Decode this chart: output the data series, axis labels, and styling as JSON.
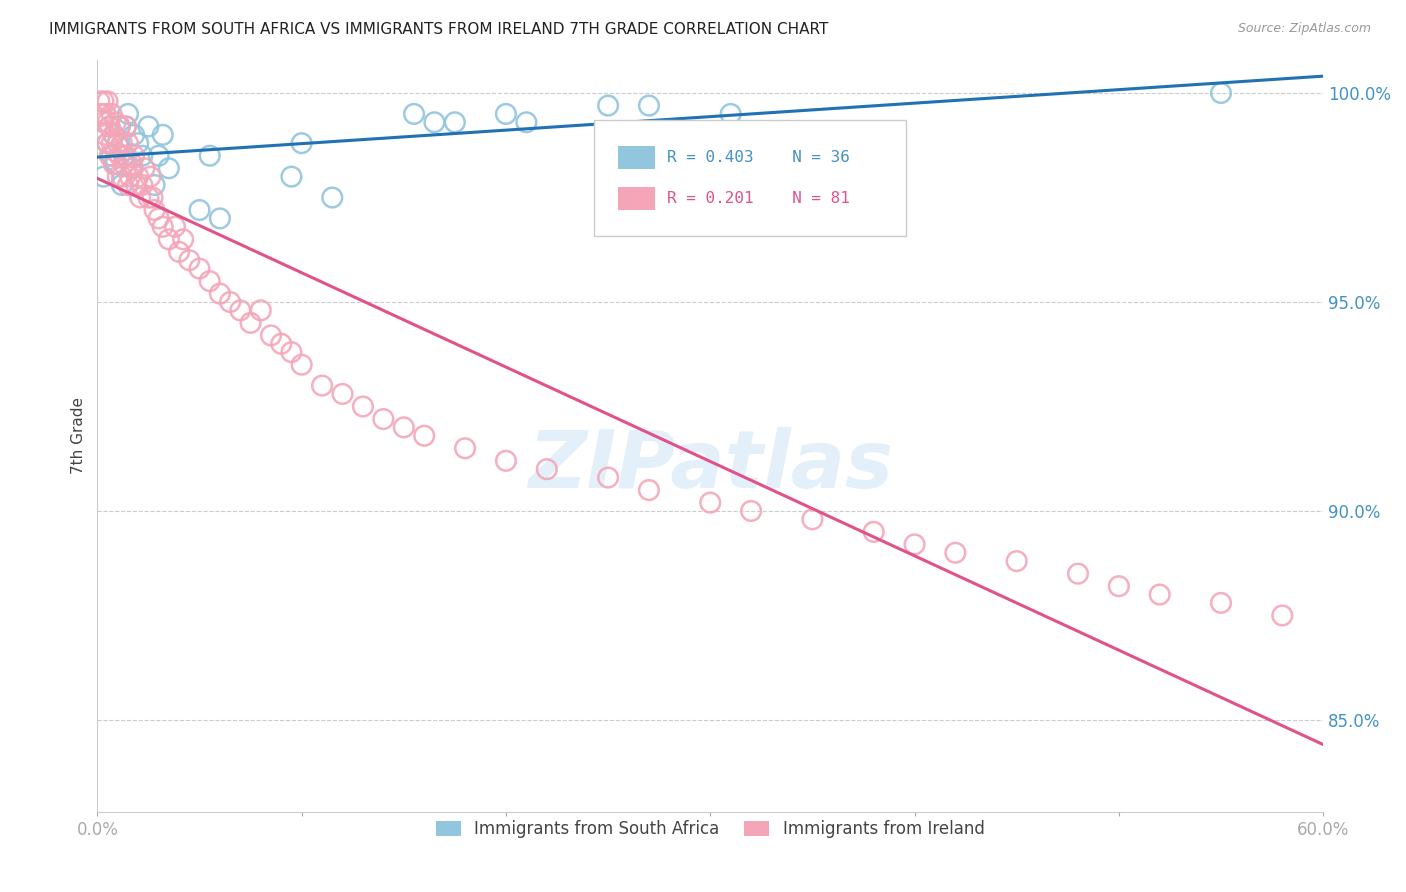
{
  "title": "IMMIGRANTS FROM SOUTH AFRICA VS IMMIGRANTS FROM IRELAND 7TH GRADE CORRELATION CHART",
  "source": "Source: ZipAtlas.com",
  "ylabel": "7th Grade",
  "xlim": [
    0.0,
    0.6
  ],
  "ylim": [
    0.828,
    1.008
  ],
  "yticks": [
    0.85,
    0.9,
    0.95,
    1.0
  ],
  "ytick_labels": [
    "85.0%",
    "90.0%",
    "95.0%",
    "100.0%"
  ],
  "color_blue": "#92c5de",
  "color_pink": "#f4a6b8",
  "color_blue_line": "#2171b5",
  "color_pink_line": "#e2528a",
  "color_grid": "#cccccc",
  "color_title": "#222222",
  "color_source": "#999999",
  "blue_scatter_x": [
    0.003,
    0.005,
    0.006,
    0.007,
    0.008,
    0.009,
    0.01,
    0.011,
    0.012,
    0.013,
    0.014,
    0.015,
    0.017,
    0.018,
    0.02,
    0.022,
    0.025,
    0.028,
    0.03,
    0.032,
    0.035,
    0.05,
    0.055,
    0.06,
    0.095,
    0.1,
    0.115,
    0.155,
    0.165,
    0.175,
    0.2,
    0.21,
    0.25,
    0.27,
    0.31,
    0.55
  ],
  "blue_scatter_y": [
    0.98,
    0.988,
    0.992,
    0.985,
    0.99,
    0.983,
    0.988,
    0.992,
    0.978,
    0.985,
    0.992,
    0.995,
    0.982,
    0.99,
    0.988,
    0.985,
    0.992,
    0.978,
    0.985,
    0.99,
    0.982,
    0.972,
    0.985,
    0.97,
    0.98,
    0.988,
    0.975,
    0.995,
    0.993,
    0.993,
    0.995,
    0.993,
    0.997,
    0.997,
    0.995,
    1.0
  ],
  "pink_scatter_x": [
    0.001,
    0.002,
    0.003,
    0.003,
    0.004,
    0.004,
    0.005,
    0.005,
    0.005,
    0.006,
    0.006,
    0.007,
    0.007,
    0.008,
    0.008,
    0.009,
    0.009,
    0.01,
    0.01,
    0.011,
    0.011,
    0.012,
    0.012,
    0.013,
    0.014,
    0.014,
    0.015,
    0.015,
    0.016,
    0.017,
    0.018,
    0.019,
    0.02,
    0.021,
    0.022,
    0.023,
    0.025,
    0.026,
    0.027,
    0.028,
    0.03,
    0.032,
    0.035,
    0.038,
    0.04,
    0.042,
    0.045,
    0.05,
    0.055,
    0.06,
    0.065,
    0.07,
    0.075,
    0.08,
    0.085,
    0.09,
    0.095,
    0.1,
    0.11,
    0.12,
    0.13,
    0.14,
    0.15,
    0.16,
    0.18,
    0.2,
    0.22,
    0.25,
    0.27,
    0.3,
    0.32,
    0.35,
    0.38,
    0.4,
    0.42,
    0.45,
    0.48,
    0.5,
    0.52,
    0.55,
    0.58
  ],
  "pink_scatter_y": [
    0.998,
    0.995,
    0.993,
    0.998,
    0.99,
    0.995,
    0.988,
    0.993,
    0.998,
    0.985,
    0.992,
    0.988,
    0.995,
    0.983,
    0.99,
    0.986,
    0.993,
    0.98,
    0.988,
    0.985,
    0.992,
    0.98,
    0.988,
    0.983,
    0.985,
    0.992,
    0.978,
    0.988,
    0.98,
    0.983,
    0.985,
    0.978,
    0.98,
    0.975,
    0.978,
    0.982,
    0.975,
    0.98,
    0.975,
    0.972,
    0.97,
    0.968,
    0.965,
    0.968,
    0.962,
    0.965,
    0.96,
    0.958,
    0.955,
    0.952,
    0.95,
    0.948,
    0.945,
    0.948,
    0.942,
    0.94,
    0.938,
    0.935,
    0.93,
    0.928,
    0.925,
    0.922,
    0.92,
    0.918,
    0.915,
    0.912,
    0.91,
    0.908,
    0.905,
    0.902,
    0.9,
    0.898,
    0.895,
    0.892,
    0.89,
    0.888,
    0.885,
    0.882,
    0.88,
    0.878,
    0.875
  ]
}
